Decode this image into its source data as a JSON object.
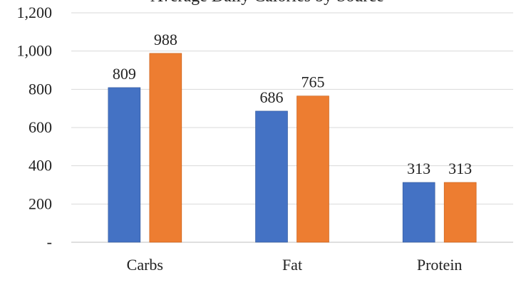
{
  "chart_data": {
    "type": "bar",
    "title": "Average Daily Calories by Source",
    "xlabel": "",
    "ylabel": "",
    "categories": [
      "Carbs",
      "Fat",
      "Protein"
    ],
    "series": [
      {
        "values": [
          809,
          686,
          313
        ],
        "color": "#4472C4"
      },
      {
        "values": [
          988,
          765,
          313
        ],
        "color": "#ED7D31"
      }
    ],
    "ylim": [
      0,
      1200
    ],
    "yticks": [
      0,
      200,
      400,
      600,
      800,
      1000,
      1200
    ],
    "ytick_labels": [
      "-",
      "200",
      "400",
      "600",
      "800",
      "1,000",
      "1,200"
    ],
    "data_labels": [
      [
        "809",
        "686",
        "313"
      ],
      [
        "988",
        "765",
        "313"
      ]
    ],
    "grid": true,
    "legend": "none"
  }
}
